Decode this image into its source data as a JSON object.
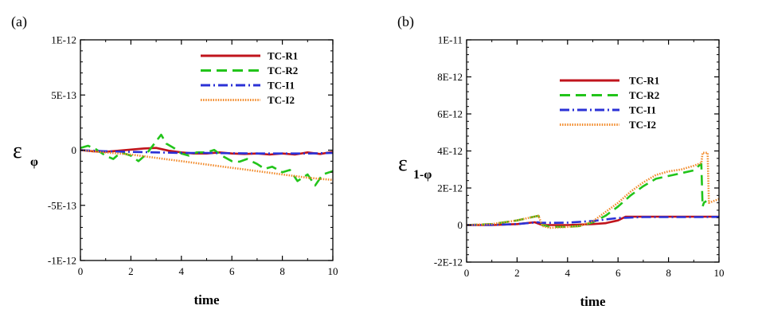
{
  "chart_data": [
    {
      "type": "line",
      "panel_label": "(a)",
      "xlabel": "time",
      "ylabel_symbol": "ε",
      "ylabel_subscript": "φ",
      "xlim": [
        0,
        10
      ],
      "ylim": [
        -1e-12,
        1e-12
      ],
      "xticks": [
        0,
        2,
        4,
        6,
        8,
        10
      ],
      "xtick_labels": [
        "0",
        "2",
        "4",
        "6",
        "8",
        "10"
      ],
      "yticks": [
        1e-12,
        5e-13,
        0,
        -5e-13,
        -1e-12
      ],
      "ytick_labels": [
        "1E-12",
        "5E-13",
        "0",
        "-5E-13",
        "-1E-12"
      ],
      "legend_position": "top-right",
      "series": [
        {
          "name": "TC-R1",
          "color": "#c0141c",
          "dash": "solid",
          "x": [
            0,
            0.5,
            1,
            1.5,
            2,
            2.5,
            3,
            3.5,
            4,
            4.5,
            5,
            5.5,
            6,
            6.5,
            7,
            7.5,
            8,
            8.5,
            9,
            9.5,
            10
          ],
          "y": [
            0,
            -1e-14,
            -1.5e-14,
            -5e-15,
            5e-15,
            1.5e-14,
            2e-14,
            -5e-15,
            -2e-14,
            -3e-14,
            -3e-14,
            -2e-14,
            -3e-14,
            -3.5e-14,
            -3e-14,
            -4e-14,
            -3e-14,
            -4e-14,
            -2e-14,
            -3.5e-14,
            -1.5e-14
          ]
        },
        {
          "name": "TC-R2",
          "color": "#22c41a",
          "dash": "dashed",
          "x": [
            0,
            0.3,
            0.6,
            1,
            1.3,
            1.6,
            2,
            2.3,
            2.6,
            3,
            3.2,
            3.4,
            3.7,
            4,
            4.3,
            4.6,
            5,
            5.3,
            5.6,
            6,
            6.3,
            6.6,
            7,
            7.3,
            7.6,
            8,
            8.3,
            8.6,
            9,
            9.3,
            9.6,
            10
          ],
          "y": [
            2e-14,
            4e-14,
            1e-14,
            -5e-14,
            -8e-14,
            -2e-14,
            -5e-14,
            -1e-13,
            -4e-14,
            8e-14,
            1.4e-13,
            6e-14,
            2e-14,
            -3e-14,
            -5e-14,
            -2e-14,
            -2e-14,
            2e-15,
            -5e-14,
            -1e-13,
            -1.05e-13,
            -8e-14,
            -1.25e-13,
            -1.7e-13,
            -1.5e-13,
            -2e-13,
            -1.8e-13,
            -2.8e-13,
            -2.2e-13,
            -3.2e-13,
            -2.2e-13,
            -1.9e-13
          ]
        },
        {
          "name": "TC-I1",
          "color": "#2b31d6",
          "dash": "dashdot",
          "x": [
            0,
            1,
            2,
            3,
            4,
            5,
            6,
            7,
            8,
            9,
            10
          ],
          "y": [
            0,
            -1e-14,
            -1.5e-14,
            -2e-14,
            -2.5e-14,
            -2.5e-14,
            -2.8e-14,
            -3e-14,
            -3e-14,
            -3e-14,
            -2.5e-14
          ]
        },
        {
          "name": "TC-I2",
          "color": "#f28a2a",
          "dash": "dotted",
          "x": [
            0,
            0.5,
            1,
            1.5,
            2,
            2.5,
            3,
            3.5,
            4,
            4.5,
            5,
            5.5,
            6,
            6.5,
            7,
            7.5,
            8,
            8.5,
            9,
            9.5,
            10
          ],
          "y": [
            0,
            -1e-14,
            -2e-14,
            -3e-14,
            -4e-14,
            -5.5e-14,
            -7e-14,
            -8.5e-14,
            -1e-13,
            -1.15e-13,
            -1.3e-13,
            -1.45e-13,
            -1.6e-13,
            -1.75e-13,
            -1.9e-13,
            -2.05e-13,
            -2.2e-13,
            -2.35e-13,
            -2.5e-13,
            -2.6e-13,
            -2.7e-13
          ]
        }
      ]
    },
    {
      "type": "line",
      "panel_label": "(b)",
      "xlabel": "time",
      "ylabel_symbol": "ε",
      "ylabel_subscript": "1-φ",
      "xlim": [
        0,
        10
      ],
      "ylim": [
        -2e-12,
        1e-11
      ],
      "xticks": [
        0,
        2,
        4,
        6,
        8,
        10
      ],
      "xtick_labels": [
        "0",
        "2",
        "4",
        "6",
        "8",
        "10"
      ],
      "yticks": [
        1e-11,
        8e-12,
        6e-12,
        4e-12,
        2e-12,
        0,
        -2e-12
      ],
      "ytick_labels": [
        "1E-11",
        "8E-12",
        "6E-12",
        "4E-12",
        "2E-12",
        "0",
        "-2E-12"
      ],
      "legend_position": "top-center",
      "series": [
        {
          "name": "TC-R1",
          "color": "#c0141c",
          "dash": "solid",
          "x": [
            0,
            1,
            2,
            2.7,
            3,
            4,
            5,
            5.5,
            6,
            6.3,
            7,
            8,
            9,
            10
          ],
          "y": [
            0,
            0,
            5e-14,
            1.5e-13,
            0,
            0,
            5e-14,
            1e-13,
            2.5e-13,
            4.5e-13,
            4.5e-13,
            4.5e-13,
            4.5e-13,
            4.5e-13
          ]
        },
        {
          "name": "TC-R2",
          "color": "#22c41a",
          "dash": "dashed",
          "x": [
            0,
            1,
            1.5,
            2,
            2.5,
            2.85,
            3,
            3.3,
            4,
            4.5,
            5,
            5.5,
            6,
            6.5,
            7,
            7.5,
            8,
            8.5,
            9,
            9.2,
            9.3,
            9.35,
            9.4,
            9.5
          ],
          "y": [
            0,
            5e-14,
            1.5e-13,
            2.5e-13,
            4e-13,
            5e-13,
            0,
            -1e-13,
            -1e-13,
            -5e-14,
            1.5e-13,
            5e-13,
            1e-12,
            1.6e-12,
            2.1e-12,
            2.5e-12,
            2.65e-12,
            2.8e-12,
            2.95e-12,
            3.2e-12,
            3.3e-12,
            1e-12,
            1.2e-12,
            1.3e-12
          ]
        },
        {
          "name": "TC-I1",
          "color": "#2b31d6",
          "dash": "dashdot",
          "x": [
            0,
            1,
            2,
            2.8,
            3,
            3.5,
            4,
            5,
            6,
            7,
            8,
            9,
            10
          ],
          "y": [
            0,
            1e-14,
            5e-14,
            1.5e-13,
            1.2e-13,
            1.2e-13,
            1.3e-13,
            2.2e-13,
            3.8e-13,
            4.3e-13,
            4.3e-13,
            4.3e-13,
            4.4e-13
          ]
        },
        {
          "name": "TC-I2",
          "color": "#f28a2a",
          "dash": "dotted",
          "x": [
            0,
            1,
            1.5,
            2,
            2.5,
            2.85,
            3,
            3.3,
            4,
            4.5,
            5,
            5.5,
            6,
            6.5,
            7,
            7.5,
            8,
            8.5,
            9,
            9.3,
            9.35,
            9.55,
            9.6,
            10
          ],
          "y": [
            0,
            5e-14,
            1.5e-13,
            2.5e-13,
            4e-13,
            5e-13,
            -5e-14,
            -1.5e-13,
            -1e-13,
            -5e-14,
            2e-13,
            7e-13,
            1.2e-12,
            1.8e-12,
            2.3e-12,
            2.7e-12,
            2.9e-12,
            3e-12,
            3.2e-12,
            3.35e-12,
            3.9e-12,
            3.9e-12,
            1.2e-12,
            1.4e-12
          ]
        }
      ]
    }
  ]
}
